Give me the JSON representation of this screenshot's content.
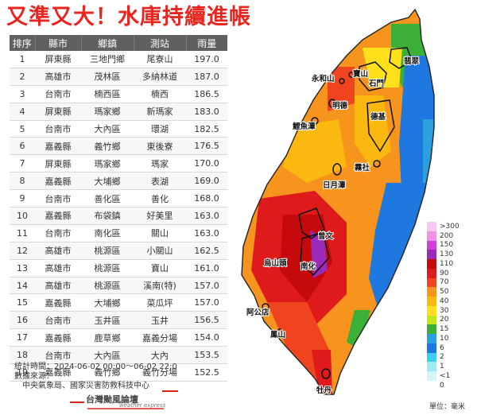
{
  "title": "又準又大！水庫持續進帳",
  "table": {
    "headers": [
      "排序",
      "縣市",
      "鄉鎮",
      "測站",
      "雨量"
    ],
    "rows": [
      [
        "1",
        "屏東縣",
        "三地門鄉",
        "尾寮山",
        "197.0"
      ],
      [
        "2",
        "高雄市",
        "茂林區",
        "多納林道",
        "187.0"
      ],
      [
        "3",
        "台南市",
        "楠西區",
        "楠西",
        "186.5"
      ],
      [
        "4",
        "屏東縣",
        "瑪家鄉",
        "新瑪家",
        "183.0"
      ],
      [
        "5",
        "台南市",
        "大內區",
        "環湖",
        "182.5"
      ],
      [
        "6",
        "嘉義縣",
        "義竹鄉",
        "東後寮",
        "176.5"
      ],
      [
        "7",
        "屏東縣",
        "瑪家鄉",
        "瑪家",
        "170.0"
      ],
      [
        "8",
        "嘉義縣",
        "大埔鄉",
        "表湖",
        "169.0"
      ],
      [
        "9",
        "台南市",
        "善化區",
        "善化",
        "168.0"
      ],
      [
        "10",
        "嘉義縣",
        "布袋鎮",
        "好美里",
        "163.0"
      ],
      [
        "11",
        "台南市",
        "南化區",
        "關山",
        "163.0"
      ],
      [
        "12",
        "高雄市",
        "桃源區",
        "小關山",
        "162.5"
      ],
      [
        "13",
        "高雄市",
        "桃源區",
        "寶山",
        "161.0"
      ],
      [
        "14",
        "高雄市",
        "桃源區",
        "溪南(特)",
        "157.0"
      ],
      [
        "15",
        "嘉義縣",
        "大埔鄉",
        "菜瓜坪",
        "157.0"
      ],
      [
        "16",
        "台南市",
        "玉井區",
        "玉井",
        "156.5"
      ],
      [
        "17",
        "嘉義縣",
        "鹿草鄉",
        "嘉義分場",
        "154.0"
      ],
      [
        "18",
        "台南市",
        "大內區",
        "大內",
        "153.5"
      ],
      [
        "19",
        "嘉義縣",
        "義竹鄉",
        "義竹分場",
        "152.5"
      ]
    ]
  },
  "footer": {
    "time": "統計時間：2024-06-02 00:00～06-02 22:0",
    "source_label": "數據來源：",
    "source_value": "中央氣象局、國家災害防救科技中心"
  },
  "logo": {
    "name": "台灣颱風論壇",
    "sub": "weather express",
    "color": "#d9261c"
  },
  "map": {
    "reservoir_labels": [
      "永和山",
      "寶山",
      "石門",
      "翡翠",
      "明德",
      "鯉魚潭",
      "德基",
      "霧社",
      "日月潭",
      "曾文",
      "烏山頭",
      "南化",
      "阿公店",
      "鳳山",
      "牡丹"
    ]
  },
  "legend": {
    "unit": "單位：毫米",
    "values": [
      ">300",
      "200",
      "150",
      "130",
      "110",
      "90",
      "70",
      "50",
      "40",
      "30",
      "20",
      "15",
      "10",
      "6",
      "2",
      "1",
      "<1",
      "0"
    ],
    "colors": [
      "#f9c8f0",
      "#f090e8",
      "#d040d8",
      "#9c2ab8",
      "#c40a0a",
      "#de1a1a",
      "#f0441e",
      "#f7941d",
      "#fbb80f",
      "#ffe01a",
      "#c6e41c",
      "#3cb036",
      "#2ba0e0",
      "#1e78e0",
      "#3ad0f0",
      "#a0eaf4",
      "#d8f4f8",
      "#ffffff"
    ]
  }
}
